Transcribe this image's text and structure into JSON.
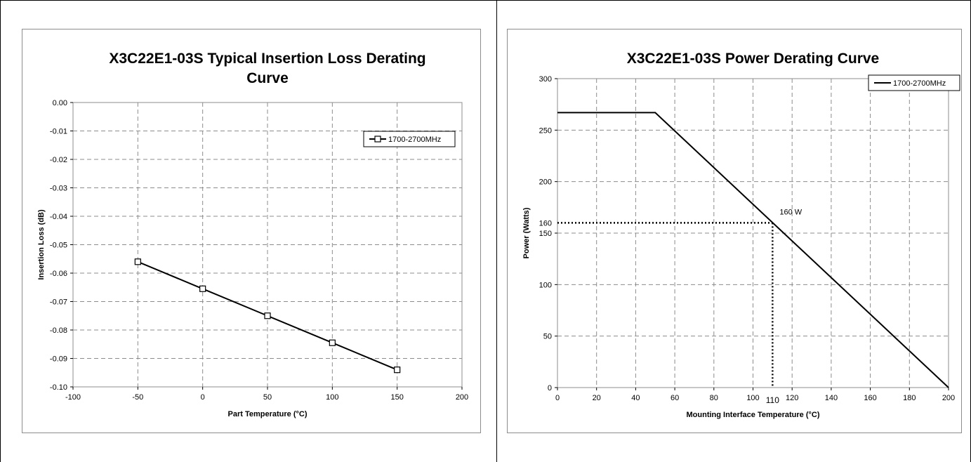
{
  "chart_data": [
    {
      "type": "line",
      "title_lines": [
        "X3C22E1-03S Typical Insertion Loss Derating",
        "Curve"
      ],
      "xlabel": "Part Temperature (°C)",
      "ylabel": "Insertion Loss (dB)",
      "xlim": [
        -100,
        200
      ],
      "ylim": [
        -0.1,
        0.0
      ],
      "x_ticks": [
        -100,
        -50,
        0,
        50,
        100,
        150,
        200
      ],
      "x_tick_labels": [
        "-100",
        "-50",
        "0",
        "50",
        "100",
        "150",
        "200"
      ],
      "y_ticks": [
        0.0,
        -0.01,
        -0.02,
        -0.03,
        -0.04,
        -0.05,
        -0.06,
        -0.07,
        -0.08,
        -0.09,
        -0.1
      ],
      "y_tick_labels": [
        "0.00",
        "-0.01",
        "-0.02",
        "-0.03",
        "-0.04",
        "-0.05",
        "-0.06",
        "-0.07",
        "-0.08",
        "-0.09",
        "-0.10"
      ],
      "grid": true,
      "legend_position": "top-right",
      "series": [
        {
          "name": "1700-2700MHz",
          "marker": "square",
          "color": "#000000",
          "x": [
            -50,
            0,
            50,
            100,
            150
          ],
          "y": [
            -0.056,
            -0.0655,
            -0.075,
            -0.0845,
            -0.094
          ]
        }
      ]
    },
    {
      "type": "line",
      "title_lines": [
        "X3C22E1-03S Power Derating Curve"
      ],
      "xlabel": "Mounting Interface Temperature (°C)",
      "ylabel": "Power (Watts)",
      "xlim": [
        0,
        200
      ],
      "ylim": [
        0,
        300
      ],
      "x_ticks": [
        0,
        20,
        40,
        60,
        80,
        100,
        120,
        140,
        160,
        180,
        200
      ],
      "x_tick_labels": [
        "0",
        "20",
        "40",
        "60",
        "80",
        "100",
        "120",
        "140",
        "160",
        "180",
        "200"
      ],
      "y_ticks": [
        0,
        50,
        100,
        150,
        200,
        250,
        300
      ],
      "y_tick_labels": [
        "0",
        "50",
        "100",
        "150",
        "200",
        "250",
        "300"
      ],
      "grid": true,
      "legend_position": "top-right",
      "series": [
        {
          "name": "1700-2700MHz",
          "marker": "none",
          "color": "#000000",
          "x": [
            0,
            50,
            200
          ],
          "y": [
            267,
            267,
            0
          ]
        }
      ],
      "reference_point": {
        "x": 110,
        "y": 160,
        "x_label": "110",
        "y_label": "160",
        "annotation": "160 W"
      }
    }
  ]
}
